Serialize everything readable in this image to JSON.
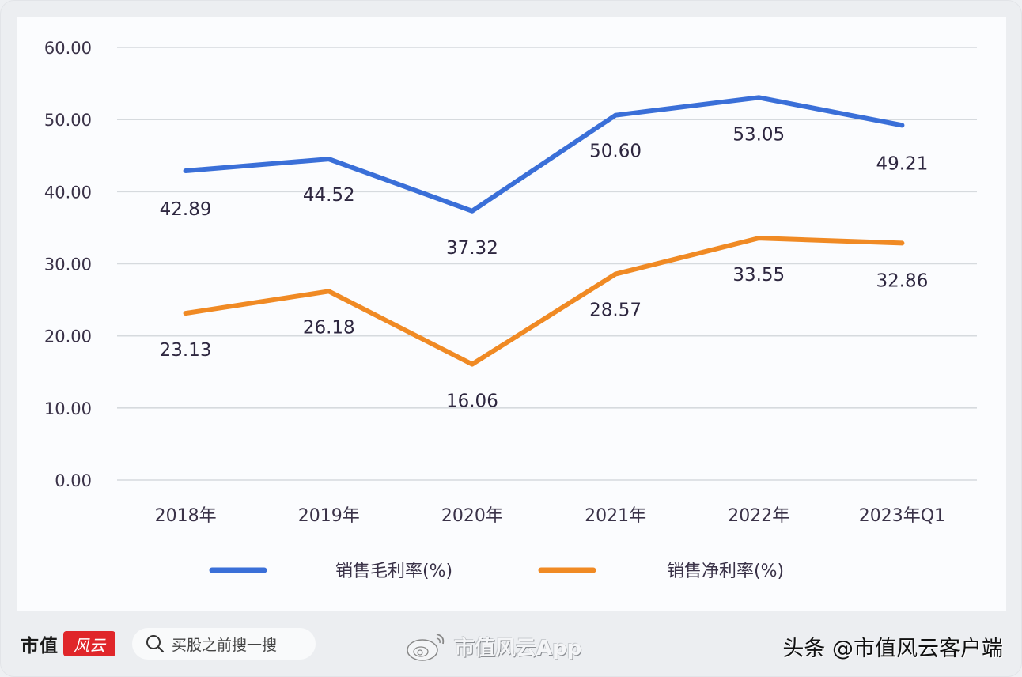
{
  "chart_data": {
    "type": "line",
    "title": "",
    "xlabel": "",
    "ylabel": "",
    "categories": [
      "2018年",
      "2019年",
      "2020年",
      "2021年",
      "2022年",
      "2023年Q1"
    ],
    "series": [
      {
        "name": "销售毛利率(%)",
        "color": "#3a6fd8",
        "values": [
          42.89,
          44.52,
          37.32,
          50.6,
          53.05,
          49.21
        ],
        "labels": [
          "42.89",
          "44.52",
          "37.32",
          "50.60",
          "53.05",
          "49.21"
        ]
      },
      {
        "name": "销售净利率(%)",
        "color": "#f08a24",
        "values": [
          23.13,
          26.18,
          16.06,
          28.57,
          33.55,
          32.86
        ],
        "labels": [
          "23.13",
          "26.18",
          "16.06",
          "28.57",
          "33.55",
          "32.86"
        ]
      }
    ],
    "yticks": [
      "0.00",
      "10.00",
      "20.00",
      "30.00",
      "40.00",
      "50.00",
      "60.00"
    ],
    "ylim": [
      0,
      60
    ],
    "grid": true,
    "legend_position": "bottom"
  },
  "footer": {
    "logo_text": "市值",
    "logo_badge": "风云",
    "search_placeholder": "买股之前搜一搜",
    "weibo_text": "市值风云App",
    "toutiao_text": "头条 @市值风云客户端"
  }
}
